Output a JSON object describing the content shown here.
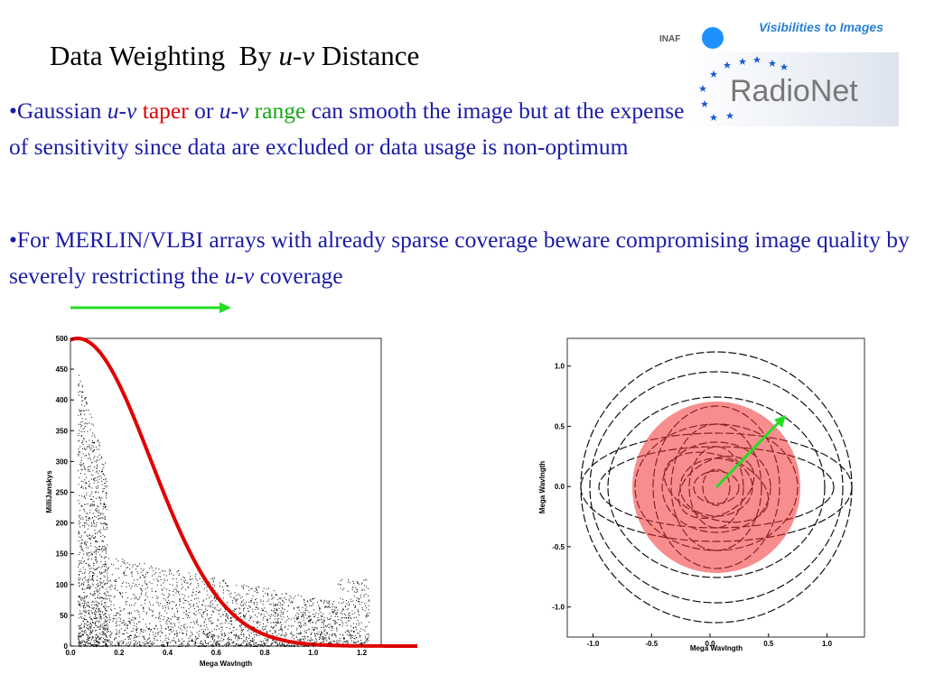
{
  "title": {
    "part1": "Data Weighting  By ",
    "italic": "u-v",
    "part2": " Distance"
  },
  "logo": {
    "tagline": "Visibilities to Images",
    "inaf": "INAF",
    "brand": "RadioNet"
  },
  "bullets": [
    {
      "s1": "•Gaussian ",
      "i1": "u-v",
      "s2": " taper",
      "s3": " or ",
      "i2": "u-v",
      "s4": " range",
      "s5": " can smooth the image but at the expense of sensitivity since data are excluded or data usage is non-optimum"
    },
    {
      "s1": "•For MERLIN/VLBI arrays with already sparse coverage beware compromising image quality by severely restricting the ",
      "i1": "u-v",
      "s2": " coverage"
    }
  ],
  "amplitude_plot": {
    "ylabel": "MilliJanskys",
    "xlabel": "Mega Wavlngth",
    "xlim": [
      0,
      1.28
    ],
    "ylim": [
      0,
      500
    ],
    "xticks": [
      {
        "value": 0,
        "label": "0.0"
      },
      0.2,
      0.4,
      0.6,
      0.8,
      {
        "value": 1,
        "label": "1.0"
      },
      1.2
    ],
    "yticks": [
      0,
      50,
      100,
      150,
      200,
      250,
      300,
      350,
      400,
      450,
      500
    ]
  },
  "uv_plot": {
    "ylabel": "Mega Wavlngth",
    "xlabel": "Mega Wavlngth",
    "xlim": [
      -1.22,
      1.32
    ],
    "ylim": [
      -1.25,
      1.23
    ],
    "xticks": [
      {
        "value": -1,
        "label": "-1.0"
      },
      -0.5,
      {
        "value": 0,
        "label": "0.0"
      },
      0.5,
      {
        "value": 1,
        "label": "1.0"
      }
    ],
    "yticks": [
      {
        "value": -1,
        "label": "-1.0"
      },
      -0.5,
      {
        "value": 0,
        "label": "0.0"
      },
      0.5,
      {
        "value": 1,
        "label": "1.0"
      }
    ]
  }
}
